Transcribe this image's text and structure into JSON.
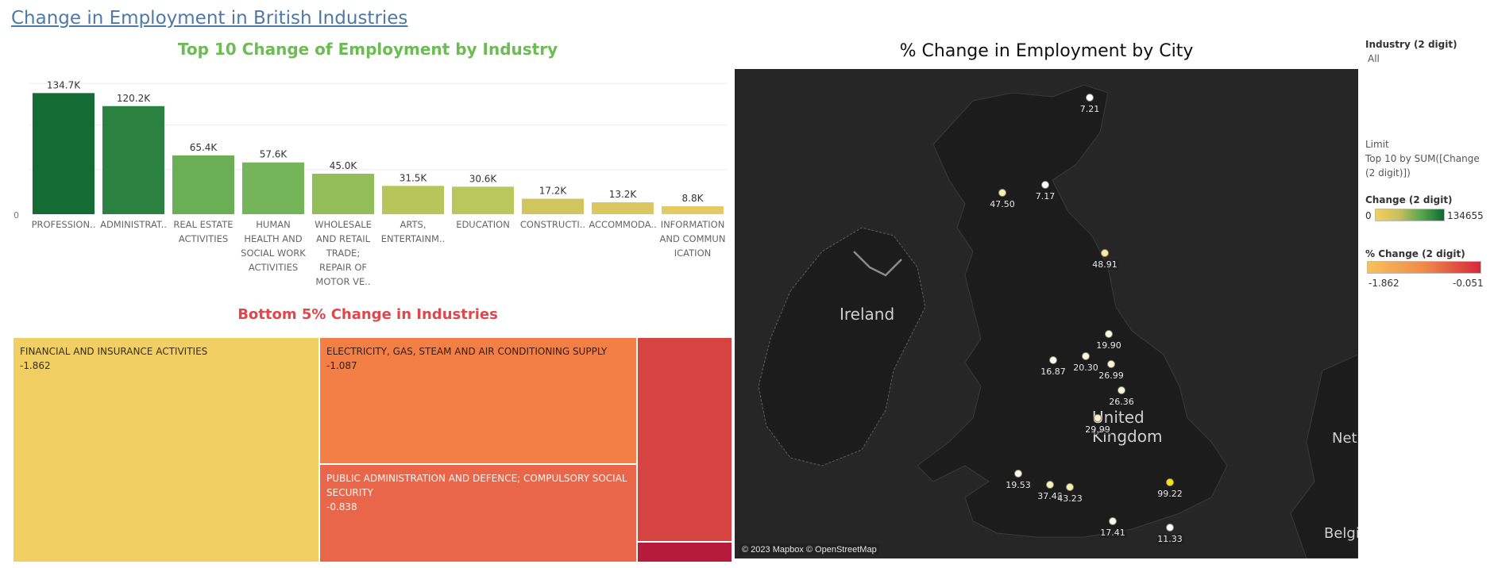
{
  "dashboard": {
    "title": "Change in Employment in British Industries"
  },
  "bar_chart": {
    "title": "Top 10 Change of Employment by Industry"
  },
  "treemap": {
    "title": "Bottom 5% Change in Industries",
    "cells": [
      {
        "name": "FINANCIAL AND INSURANCE ACTIVITIES",
        "value": "-1.862",
        "color": "#f2cf63"
      },
      {
        "name": "ELECTRICITY, GAS, STEAM AND AIR CONDITIONING SUPPLY",
        "value": "-1.087",
        "color": "#f47f46"
      },
      {
        "name": "PUBLIC ADMINISTRATION AND DEFENCE; COMPULSORY SOCIAL SECURITY",
        "value": "-0.838",
        "color": "#e9664a"
      },
      {
        "name": "",
        "value": "",
        "color": "#d64442"
      },
      {
        "name": "",
        "value": "",
        "color": "#b71b3b"
      }
    ]
  },
  "map": {
    "title": "% Change in Employment by City",
    "attribution": "© 2023 Mapbox © OpenStreetMap",
    "places": {
      "ireland": "Ireland",
      "uk_line1": "United",
      "uk_line2": "Kingdom",
      "netherlands": "Neth",
      "belgium": "Belgi"
    },
    "points": [
      {
        "label": "7.21",
        "color": "#ffffff"
      },
      {
        "label": "7.17",
        "color": "#ffffff"
      },
      {
        "label": "47.50",
        "color": "#f8f1a8"
      },
      {
        "label": "48.91",
        "color": "#f8ef90"
      },
      {
        "label": "19.90",
        "color": "#fbf8dc"
      },
      {
        "label": "16.87",
        "color": "#fdfbeb"
      },
      {
        "label": "20.30",
        "color": "#fbf8dc"
      },
      {
        "label": "26.99",
        "color": "#faf6cf"
      },
      {
        "label": "26.36",
        "color": "#faf6cf"
      },
      {
        "label": "29.99",
        "color": "#f9f3c4"
      },
      {
        "label": "19.53",
        "color": "#fbf8dc"
      },
      {
        "label": "37.48",
        "color": "#f9f2b8"
      },
      {
        "label": "43.23",
        "color": "#f8f0a6"
      },
      {
        "label": "99.22",
        "color": "#f3e800"
      },
      {
        "label": "17.41",
        "color": "#fdfbeb"
      },
      {
        "label": "11.33",
        "color": "#ffffff"
      }
    ]
  },
  "sidebar": {
    "industry_filter": {
      "label": "Industry (2 digit)",
      "value": "All"
    },
    "limit": {
      "label": "Limit",
      "value": "Top 10 by SUM([Change (2 digit)])"
    },
    "change_legend": {
      "label": "Change (2 digit)",
      "min": "0",
      "max": "134655",
      "color_low": "#f2cf63",
      "color_high": "#0f6b32"
    },
    "pct_legend": {
      "label": "% Change (2 digit)",
      "min": "-1.862",
      "max": "-0.051",
      "color_low": "#f7c15c",
      "color_high": "#d4283c"
    }
  },
  "chart_data": {
    "type": "bar",
    "title": "Top 10 Change of Employment by Industry",
    "categories": [
      "PROFESSION..",
      "ADMINISTRAT..",
      "REAL ESTATE ACTIVITIES",
      "HUMAN HEALTH AND SOCIAL WORK ACTIVITIES",
      "WHOLESALE AND RETAIL TRADE; REPAIR OF MOTOR VE..",
      "ARTS, ENTERTAINM..",
      "EDUCATION",
      "CONSTRUCTI..",
      "ACCOMMODA..",
      "INFORMATION AND COMMUNICATION"
    ],
    "category_lines": [
      [
        "PROFESSION.."
      ],
      [
        "ADMINISTRAT.."
      ],
      [
        "REAL ESTATE",
        "ACTIVITIES"
      ],
      [
        "HUMAN",
        "HEALTH AND",
        "SOCIAL WORK",
        "ACTIVITIES"
      ],
      [
        "WHOLESALE",
        "AND RETAIL",
        "TRADE;",
        "REPAIR OF",
        "MOTOR VE.."
      ],
      [
        "ARTS,",
        "ENTERTAINM.."
      ],
      [
        "EDUCATION"
      ],
      [
        "CONSTRUCTI.."
      ],
      [
        "ACCOMMODA.."
      ],
      [
        "INFORMATION",
        "AND COMMUN",
        "ICATION"
      ]
    ],
    "values": [
      134700,
      120200,
      65400,
      57600,
      45000,
      31500,
      30600,
      17200,
      13200,
      8800
    ],
    "data_labels": [
      "134.7K",
      "120.2K",
      "65.4K",
      "57.6K",
      "45.0K",
      "31.5K",
      "30.6K",
      "17.2K",
      "13.2K",
      "8.8K"
    ],
    "colors": [
      "#146b33",
      "#2a8140",
      "#6aaf55",
      "#75b55a",
      "#93bd59",
      "#b6c65a",
      "#bac75c",
      "#d1c55f",
      "#dbc761",
      "#e3ca64"
    ],
    "ytick_labels": [
      "0"
    ],
    "ylim": [
      0,
      150000
    ],
    "grid": true
  }
}
